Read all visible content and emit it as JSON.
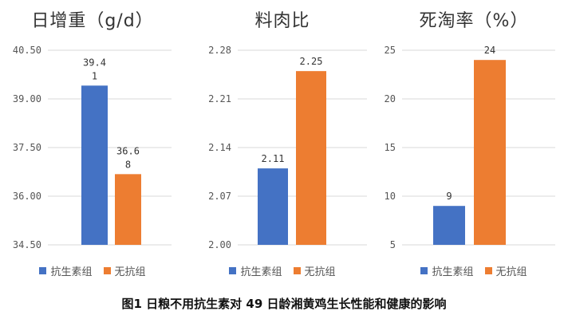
{
  "caption": "图1 日粮不用抗生素对 49 日龄湘黄鸡生长性能和健康的影响",
  "legend": [
    "抗生素组",
    "无抗组"
  ],
  "colors": {
    "antibiotic": "#4472C4",
    "no_antibiotic": "#ED7D31",
    "grid": "#D9D9D9"
  },
  "chart_data": [
    {
      "type": "bar",
      "title": "日增重（g/d）",
      "categories": [
        "抗生素组",
        "无抗组"
      ],
      "values": [
        39.41,
        36.68
      ],
      "value_labels": [
        [
          "39.4",
          "1"
        ],
        [
          "36.6",
          "8"
        ]
      ],
      "ylim": [
        34.5,
        40.5
      ],
      "yticks": [
        "34.50",
        "36.00",
        "37.50",
        "39.00",
        "40.50"
      ],
      "ytick_values": [
        34.5,
        36.0,
        37.5,
        39.0,
        40.5
      ],
      "grid": true,
      "legend_position": "bottom"
    },
    {
      "type": "bar",
      "title": "料肉比",
      "categories": [
        "抗生素组",
        "无抗组"
      ],
      "values": [
        2.11,
        2.25
      ],
      "value_labels": [
        [
          "2.11"
        ],
        [
          "2.25"
        ]
      ],
      "ylim": [
        2.0,
        2.28
      ],
      "yticks": [
        "2.00",
        "2.07",
        "2.14",
        "2.21",
        "2.28"
      ],
      "ytick_values": [
        2.0,
        2.07,
        2.14,
        2.21,
        2.28
      ],
      "grid": true,
      "legend_position": "bottom"
    },
    {
      "type": "bar",
      "title": "死淘率（%）",
      "categories": [
        "抗生素组",
        "无抗组"
      ],
      "values": [
        9,
        24
      ],
      "value_labels": [
        [
          "9"
        ],
        [
          "24"
        ]
      ],
      "ylim": [
        5,
        25
      ],
      "yticks": [
        "5",
        "10",
        "15",
        "20",
        "25"
      ],
      "ytick_values": [
        5,
        10,
        15,
        20,
        25
      ],
      "grid": true,
      "legend_position": "bottom"
    }
  ]
}
